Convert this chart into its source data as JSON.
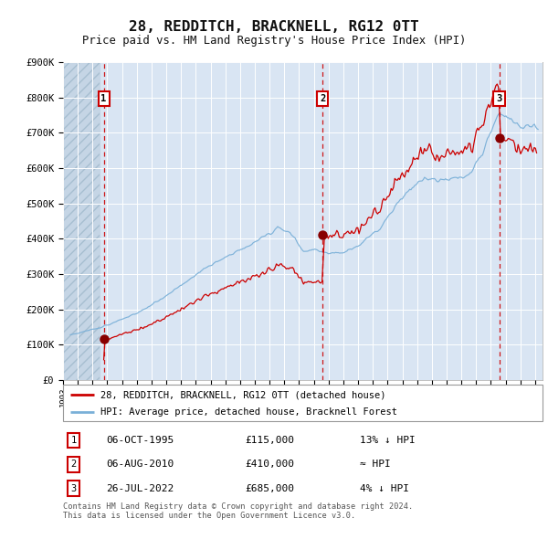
{
  "title": "28, REDDITCH, BRACKNELL, RG12 0TT",
  "subtitle": "Price paid vs. HM Land Registry's House Price Index (HPI)",
  "ylim": [
    0,
    900000
  ],
  "yticks": [
    0,
    100000,
    200000,
    300000,
    400000,
    500000,
    600000,
    700000,
    800000,
    900000
  ],
  "ytick_labels": [
    "£0",
    "£100K",
    "£200K",
    "£300K",
    "£400K",
    "£500K",
    "£600K",
    "£700K",
    "£800K",
    "£900K"
  ],
  "xlim_start": 1993.0,
  "xlim_end": 2025.5,
  "hpi_color": "#7ab0d8",
  "price_color": "#cc0000",
  "plot_bg_color": "#d9e5f3",
  "grid_color": "#ffffff",
  "sale_points": [
    {
      "year": 1995.76,
      "price": 115000,
      "label": "1"
    },
    {
      "year": 2010.59,
      "price": 410000,
      "label": "2"
    },
    {
      "year": 2022.56,
      "price": 685000,
      "label": "3"
    }
  ],
  "vline_color": "#cc0000",
  "marker_color": "#880000",
  "legend_label_price": "28, REDDITCH, BRACKNELL, RG12 0TT (detached house)",
  "legend_label_hpi": "HPI: Average price, detached house, Bracknell Forest",
  "table_rows": [
    {
      "num": "1",
      "date": "06-OCT-1995",
      "price": "£115,000",
      "relation": "13% ↓ HPI"
    },
    {
      "num": "2",
      "date": "06-AUG-2010",
      "price": "£410,000",
      "relation": "≈ HPI"
    },
    {
      "num": "3",
      "date": "26-JUL-2022",
      "price": "£685,000",
      "relation": "4% ↓ HPI"
    }
  ],
  "footer": "Contains HM Land Registry data © Crown copyright and database right 2024.\nThis data is licensed under the Open Government Licence v3.0."
}
